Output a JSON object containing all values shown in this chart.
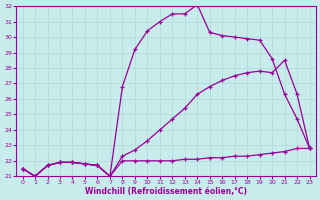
{
  "xlabel": "Windchill (Refroidissement éolien,°C)",
  "bg_color": "#c8ecec",
  "grid_color": "#b0d8d8",
  "line_color": "#990099",
  "xlim": [
    -0.5,
    23.5
  ],
  "ylim": [
    21,
    32
  ],
  "yticks": [
    21,
    22,
    23,
    24,
    25,
    26,
    27,
    28,
    29,
    30,
    31,
    32
  ],
  "xticks": [
    0,
    1,
    2,
    3,
    4,
    5,
    6,
    7,
    8,
    9,
    10,
    11,
    12,
    13,
    14,
    15,
    16,
    17,
    18,
    19,
    20,
    21,
    22,
    23
  ],
  "line1_x": [
    0,
    1,
    2,
    3,
    4,
    5,
    6,
    7,
    8,
    9,
    10,
    11,
    12,
    13,
    14,
    15,
    16,
    17,
    18,
    19,
    20,
    21,
    22,
    23
  ],
  "line1_y": [
    21.5,
    21.0,
    21.7,
    21.9,
    21.9,
    21.8,
    21.7,
    21.0,
    26.8,
    29.2,
    30.4,
    31.0,
    31.5,
    31.5,
    32.1,
    30.3,
    30.1,
    30.0,
    29.9,
    29.8,
    28.6,
    26.3,
    24.7,
    22.8
  ],
  "line2_x": [
    0,
    1,
    2,
    3,
    4,
    5,
    6,
    7,
    8,
    9,
    10,
    11,
    12,
    13,
    14,
    15,
    16,
    17,
    18,
    19,
    20,
    21,
    22,
    23
  ],
  "line2_y": [
    21.5,
    21.0,
    21.7,
    21.9,
    21.9,
    21.8,
    21.7,
    21.0,
    22.3,
    22.7,
    23.3,
    24.0,
    24.7,
    25.4,
    26.3,
    26.8,
    27.2,
    27.5,
    27.7,
    27.8,
    27.7,
    28.5,
    26.3,
    22.8
  ],
  "line3_x": [
    0,
    1,
    2,
    3,
    4,
    5,
    6,
    7,
    8,
    9,
    10,
    11,
    12,
    13,
    14,
    15,
    16,
    17,
    18,
    19,
    20,
    21,
    22,
    23
  ],
  "line3_y": [
    21.5,
    21.0,
    21.7,
    21.9,
    21.9,
    21.8,
    21.7,
    21.0,
    22.0,
    22.0,
    22.0,
    22.0,
    22.0,
    22.1,
    22.1,
    22.2,
    22.2,
    22.3,
    22.3,
    22.4,
    22.5,
    22.6,
    22.8,
    22.8
  ]
}
